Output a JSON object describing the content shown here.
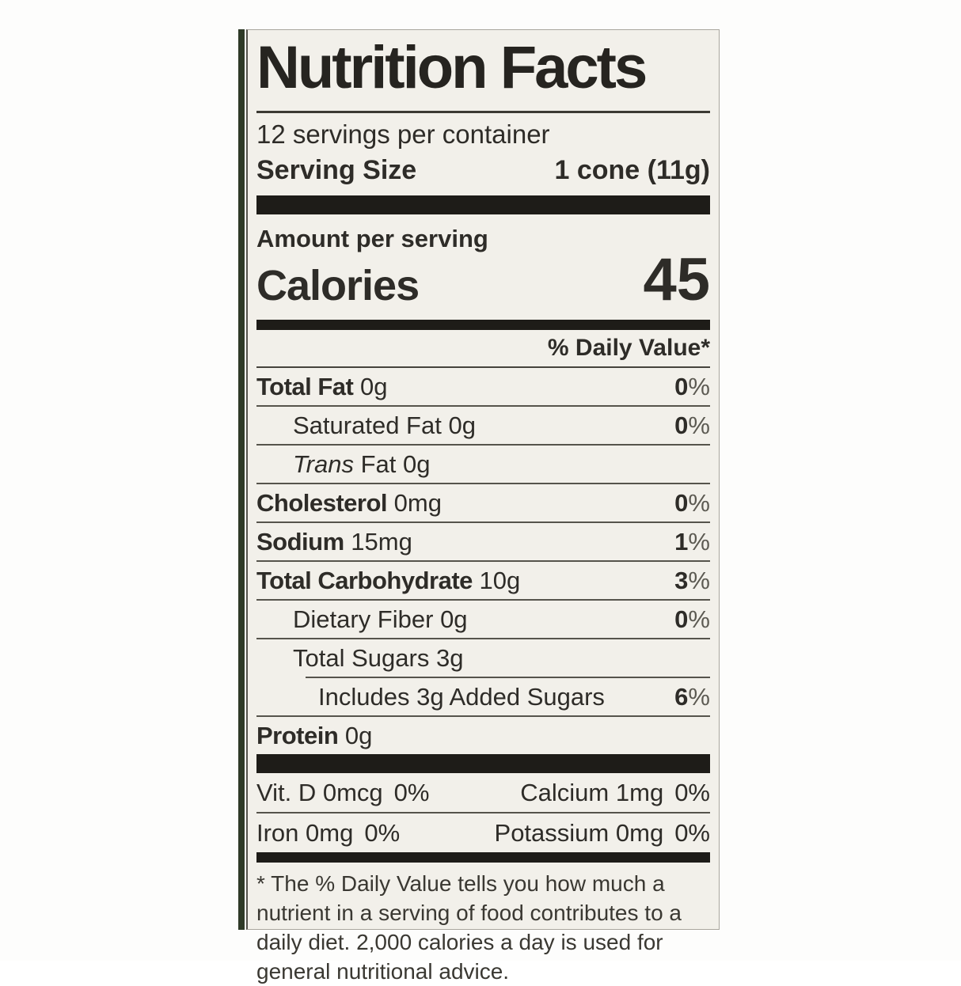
{
  "label": {
    "title": "Nutrition Facts",
    "servings_per_container": "12 servings per container",
    "serving_size_label": "Serving Size",
    "serving_size_value": "1 cone (11g)",
    "amount_per_serving": "Amount per serving",
    "calories_label": "Calories",
    "calories_value": "45",
    "daily_value_header": "% Daily Value*",
    "percent_sign": "%",
    "rows": [
      {
        "name": "Total Fat",
        "amount": "0g",
        "dv": "0"
      },
      {
        "name": "Saturated Fat",
        "amount": "0g",
        "dv": "0"
      },
      {
        "name_italic": "Trans",
        "name": "Fat",
        "amount": "0g",
        "dv": ""
      },
      {
        "name": "Cholesterol",
        "amount": "0mg",
        "dv": "0"
      },
      {
        "name": "Sodium",
        "amount": "15mg",
        "dv": "1"
      },
      {
        "name": "Total Carbohydrate",
        "amount": "10g",
        "dv": "3"
      },
      {
        "name": "Dietary Fiber",
        "amount": "0g",
        "dv": "0"
      },
      {
        "name": "Total Sugars",
        "amount": "3g",
        "dv": ""
      },
      {
        "name": "Includes 3g Added Sugars",
        "amount": "",
        "dv": "6"
      },
      {
        "name": "Protein",
        "amount": "0g",
        "dv": ""
      }
    ],
    "micronutrients": [
      {
        "left_name": "Vit. D",
        "left_amount": "0mcg",
        "left_dv": "0%",
        "right_name": "Calcium",
        "right_amount": "1mg",
        "right_dv": "0%"
      },
      {
        "left_name": "Iron",
        "left_amount": "0mg",
        "left_dv": "0%",
        "right_name": "Potassium",
        "right_amount": "0mg",
        "right_dv": "0%"
      }
    ],
    "footnote": "* The % Daily Value tells you how much a nutrient in a serving of food contributes to a daily diet. 2,000 calories a day is used for general nutritional advice."
  },
  "colors": {
    "label_background": "#f2f0ea",
    "text": "#2e2c28",
    "bars": "#1e1c18",
    "package_edge_green": "#2e3a27",
    "page_background": "#fdfdfc"
  }
}
